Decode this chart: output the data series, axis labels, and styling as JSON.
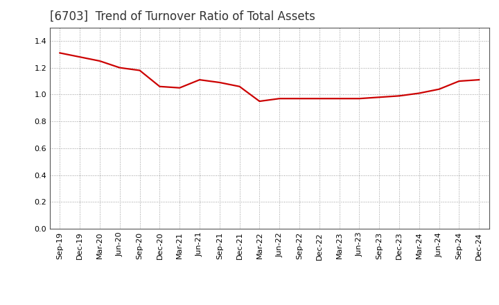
{
  "title": "[6703]  Trend of Turnover Ratio of Total Assets",
  "x_labels": [
    "Sep-19",
    "Dec-19",
    "Mar-20",
    "Jun-20",
    "Sep-20",
    "Dec-20",
    "Mar-21",
    "Jun-21",
    "Sep-21",
    "Dec-21",
    "Mar-22",
    "Jun-22",
    "Sep-22",
    "Dec-22",
    "Mar-23",
    "Jun-23",
    "Sep-23",
    "Dec-23",
    "Mar-24",
    "Jun-24",
    "Sep-24",
    "Dec-24"
  ],
  "y_values": [
    1.31,
    1.28,
    1.25,
    1.2,
    1.18,
    1.06,
    1.05,
    1.11,
    1.09,
    1.06,
    0.95,
    0.97,
    0.97,
    0.97,
    0.97,
    0.97,
    0.98,
    0.99,
    1.01,
    1.04,
    1.1,
    1.11
  ],
  "line_color": "#cc0000",
  "line_width": 1.6,
  "ylim": [
    0.0,
    1.5
  ],
  "yticks": [
    0.0,
    0.2,
    0.4,
    0.6,
    0.8,
    1.0,
    1.2,
    1.4
  ],
  "background_color": "#ffffff",
  "grid_color": "#999999",
  "title_fontsize": 12,
  "tick_fontsize": 8
}
